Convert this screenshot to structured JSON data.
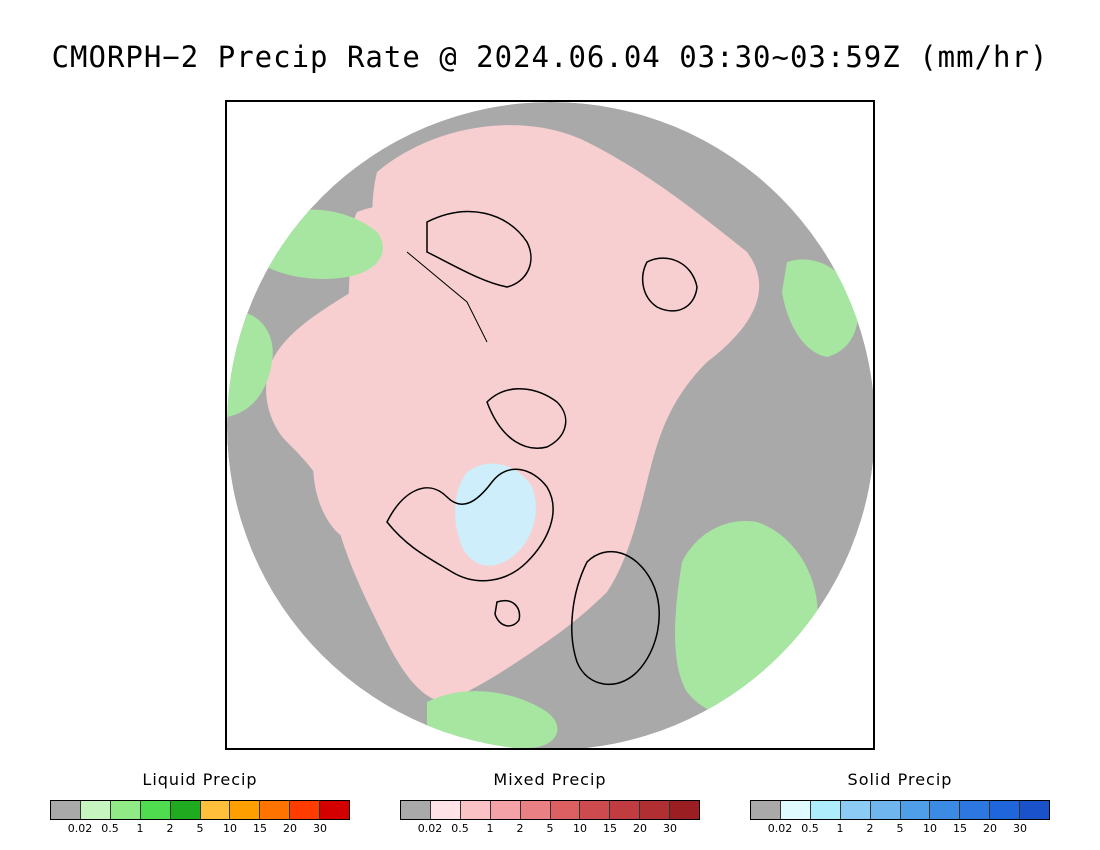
{
  "title": "CMORPH−2 Precip Rate @ 2024.06.04 03:30~03:59Z (mm/hr)",
  "map": {
    "region": "north-polar-stereographic",
    "background_color": "#a9a9a9",
    "coastline_color": "#000000",
    "features": [
      {
        "name": "greenland-solid-precip",
        "category": "solid",
        "color": "#cdeefa"
      },
      {
        "name": "arctic-mixed-precip",
        "category": "mixed",
        "color": "#f7cfd0"
      },
      {
        "name": "russia-liquid-precip",
        "category": "liquid",
        "color": "#a6e6a0"
      },
      {
        "name": "canada-liquid-precip",
        "category": "liquid",
        "color": "#a6e6a0"
      },
      {
        "name": "europe-liquid-precip",
        "category": "liquid",
        "color": "#a6e6a0"
      }
    ]
  },
  "legends": [
    {
      "key": "liquid",
      "title": "Liquid Precip",
      "colors": [
        "#a9a9a9",
        "#c7f5bf",
        "#90ea85",
        "#4fdd4f",
        "#1faa1f",
        "#ffbf3a",
        "#ff9f00",
        "#ff7300",
        "#ff3c00",
        "#d40000"
      ],
      "ticks": [
        "0.02",
        "0.5",
        "1",
        "2",
        "5",
        "10",
        "15",
        "20",
        "30"
      ]
    },
    {
      "key": "mixed",
      "title": "Mixed Precip",
      "colors": [
        "#a9a9a9",
        "#ffe3e6",
        "#fbc2c6",
        "#f4a2a7",
        "#e98084",
        "#dc5f62",
        "#cd4a4f",
        "#c03c40",
        "#b02f33",
        "#9b1f22"
      ],
      "ticks": [
        "0.02",
        "0.5",
        "1",
        "2",
        "5",
        "10",
        "15",
        "20",
        "30"
      ]
    },
    {
      "key": "solid",
      "title": "Solid Precip",
      "colors": [
        "#a9a9a9",
        "#dffbff",
        "#aeeefc",
        "#8cccf4",
        "#6fb6ee",
        "#4f9ee8",
        "#3b8ae4",
        "#2d78e0",
        "#1f66dc",
        "#1a52cc"
      ],
      "ticks": [
        "0.02",
        "0.5",
        "1",
        "2",
        "5",
        "10",
        "15",
        "20",
        "30"
      ]
    }
  ]
}
